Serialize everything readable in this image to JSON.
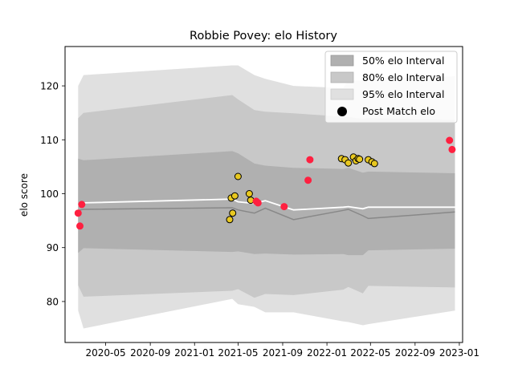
{
  "chart_data": {
    "type": "scatter",
    "title": "Robbie Povey: elo History",
    "xlabel": "",
    "ylabel": "elo score",
    "x_range": [
      "2020-01-10",
      "2023-01-10"
    ],
    "ylim": [
      72.4,
      127.3
    ],
    "x_ticks": [
      "2020-05",
      "2020-09",
      "2021-01",
      "2021-05",
      "2021-09",
      "2022-01",
      "2022-05",
      "2022-09",
      "2023-01"
    ],
    "y_ticks": [
      80,
      90,
      100,
      110,
      120
    ],
    "grid": false,
    "legend_position": "top-right",
    "legend": {
      "entries": [
        "50% elo Interval",
        "80% elo Interval",
        "95% elo Interval",
        "Post Match elo"
      ]
    },
    "colors": {
      "band_50": "#b0b0b0",
      "band_80": "#c8c8c8",
      "band_95": "#e0e0e0",
      "median_line": "#888888",
      "mean_line": "#ffffff",
      "win_point": "#e8c820",
      "loss_point": "#ff2040",
      "point_edge": "#000000"
    },
    "bands": {
      "dates": [
        "2020-02-15",
        "2020-03-01",
        "2021-04-15",
        "2021-05-01",
        "2021-06-15",
        "2021-07-15",
        "2021-10-01",
        "2022-02-15",
        "2022-03-01",
        "2022-04-10",
        "2022-04-25",
        "2022-12-20"
      ],
      "p95_upper": [
        120.0,
        122.0,
        123.8,
        123.8,
        122.0,
        121.3,
        120.0,
        119.6,
        121.0,
        121.0,
        121.3,
        121.8
      ],
      "p95_lower": [
        78.3,
        75.0,
        80.5,
        79.5,
        79.0,
        78.0,
        78.0,
        76.3,
        76.2,
        75.6,
        75.8,
        78.3
      ],
      "p80_upper": [
        114.0,
        115.0,
        118.3,
        117.5,
        115.5,
        115.2,
        114.9,
        114.3,
        114.2,
        113.9,
        114.0,
        113.7
      ],
      "p80_lower": [
        83.0,
        80.9,
        82.0,
        82.3,
        80.7,
        81.4,
        81.2,
        82.2,
        82.7,
        81.5,
        82.9,
        82.6
      ],
      "p50_upper": [
        106.5,
        106.2,
        107.9,
        107.5,
        105.6,
        105.2,
        104.8,
        104.6,
        104.8,
        103.9,
        104.1,
        103.8
      ],
      "p50_lower": [
        89.0,
        89.9,
        89.2,
        89.3,
        88.8,
        88.9,
        88.7,
        88.8,
        88.6,
        88.6,
        89.5,
        89.8
      ],
      "median": [
        96.9,
        97.1,
        97.4,
        97.0,
        96.4,
        97.3,
        95.2,
        96.9,
        97.1,
        95.9,
        95.4,
        96.6
      ],
      "mean": [
        97.8,
        98.3,
        99.0,
        98.5,
        98.2,
        98.7,
        97.0,
        97.5,
        97.6,
        97.2,
        97.5,
        97.5
      ]
    },
    "points": [
      {
        "date": "2020-02-15",
        "elo": 96.4,
        "result": "loss"
      },
      {
        "date": "2020-02-20",
        "elo": 94.0,
        "result": "loss"
      },
      {
        "date": "2020-02-25",
        "elo": 98.0,
        "result": "loss"
      },
      {
        "date": "2021-04-08",
        "elo": 95.2,
        "result": "win"
      },
      {
        "date": "2021-04-12",
        "elo": 99.2,
        "result": "win"
      },
      {
        "date": "2021-04-16",
        "elo": 96.4,
        "result": "win"
      },
      {
        "date": "2021-04-22",
        "elo": 99.6,
        "result": "win"
      },
      {
        "date": "2021-05-01",
        "elo": 103.2,
        "result": "win"
      },
      {
        "date": "2021-06-01",
        "elo": 100.0,
        "result": "win"
      },
      {
        "date": "2021-06-05",
        "elo": 98.8,
        "result": "win"
      },
      {
        "date": "2021-06-20",
        "elo": 98.6,
        "result": "loss"
      },
      {
        "date": "2021-06-25",
        "elo": 98.3,
        "result": "loss"
      },
      {
        "date": "2021-09-05",
        "elo": 97.6,
        "result": "loss"
      },
      {
        "date": "2021-11-10",
        "elo": 102.5,
        "result": "loss"
      },
      {
        "date": "2021-11-15",
        "elo": 106.3,
        "result": "loss"
      },
      {
        "date": "2022-02-10",
        "elo": 106.5,
        "result": "win"
      },
      {
        "date": "2022-02-20",
        "elo": 106.3,
        "result": "win"
      },
      {
        "date": "2022-03-01",
        "elo": 105.7,
        "result": "win"
      },
      {
        "date": "2022-03-15",
        "elo": 106.8,
        "result": "win"
      },
      {
        "date": "2022-03-22",
        "elo": 106.1,
        "result": "win"
      },
      {
        "date": "2022-03-28",
        "elo": 106.5,
        "result": "win"
      },
      {
        "date": "2022-04-01",
        "elo": 106.4,
        "result": "win"
      },
      {
        "date": "2022-04-25",
        "elo": 106.3,
        "result": "win"
      },
      {
        "date": "2022-05-05",
        "elo": 105.9,
        "result": "win"
      },
      {
        "date": "2022-05-12",
        "elo": 105.6,
        "result": "win"
      },
      {
        "date": "2022-12-05",
        "elo": 109.9,
        "result": "loss"
      },
      {
        "date": "2022-12-12",
        "elo": 108.2,
        "result": "loss"
      }
    ]
  }
}
